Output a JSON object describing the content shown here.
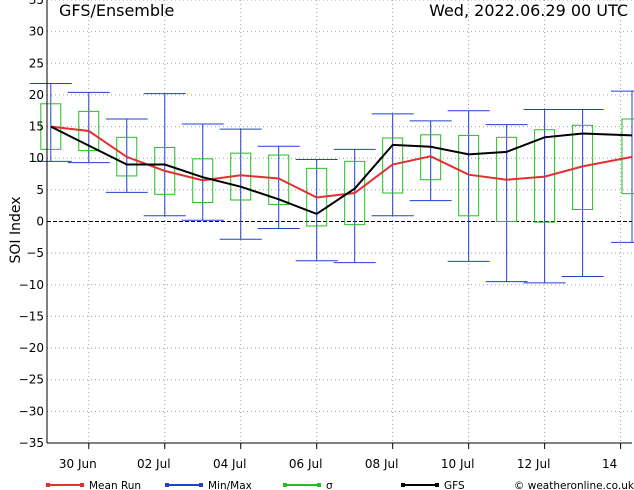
{
  "header": {
    "title": "GFS/Ensemble",
    "run_time": "Wed, 2022.06.29   00 UTC"
  },
  "footer": {
    "credit": "© weatheronline.co.uk"
  },
  "colors": {
    "mean": "#e03030",
    "minmax": "#2040d0",
    "sigma": "#20c020",
    "gfs": "#000000",
    "grid": "#a0a0a0"
  },
  "chart_data": {
    "type": "line",
    "ylabel": "SOI Index",
    "ylim": [
      -35,
      35
    ],
    "yticks": [
      35,
      30,
      25,
      20,
      15,
      10,
      5,
      0,
      -5,
      -10,
      -15,
      -20,
      -25,
      -30,
      -35
    ],
    "xlim": [
      -0.1,
      15.3
    ],
    "xtick_labels": [
      {
        "x": 1,
        "label": "30 Jun"
      },
      {
        "x": 3,
        "label": "02 Jul"
      },
      {
        "x": 5,
        "label": "04 Jul"
      },
      {
        "x": 7,
        "label": "06 Jul"
      },
      {
        "x": 9,
        "label": "08 Jul"
      },
      {
        "x": 11,
        "label": "10 Jul"
      },
      {
        "x": 13,
        "label": "12 Jul"
      },
      {
        "x": 15,
        "label": "14"
      }
    ],
    "x_unit": "days from 2022-06-29 00 UTC",
    "grid": true,
    "legend_position": "bottom",
    "legend": [
      {
        "key": "mean",
        "label": "Mean Run"
      },
      {
        "key": "minmax",
        "label": "Min/Max"
      },
      {
        "key": "sigma",
        "label": "σ"
      },
      {
        "key": "gfs",
        "label": "GFS"
      }
    ],
    "mean_run": [
      {
        "x": 0.0,
        "y": 15.0
      },
      {
        "x": 1.0,
        "y": 14.3
      },
      {
        "x": 2.0,
        "y": 10.2
      },
      {
        "x": 3.0,
        "y": 8.0
      },
      {
        "x": 4.0,
        "y": 6.5
      },
      {
        "x": 5.0,
        "y": 7.3
      },
      {
        "x": 6.0,
        "y": 6.8
      },
      {
        "x": 7.0,
        "y": 3.8
      },
      {
        "x": 8.0,
        "y": 4.5
      },
      {
        "x": 9.0,
        "y": 9.0
      },
      {
        "x": 10.0,
        "y": 10.3
      },
      {
        "x": 11.0,
        "y": 7.4
      },
      {
        "x": 12.0,
        "y": 6.6
      },
      {
        "x": 13.0,
        "y": 7.1
      },
      {
        "x": 14.0,
        "y": 8.7
      },
      {
        "x": 15.3,
        "y": 10.2
      }
    ],
    "gfs": [
      {
        "x": 0.0,
        "y": 15.0
      },
      {
        "x": 1.0,
        "y": 12.0
      },
      {
        "x": 2.0,
        "y": 9.0
      },
      {
        "x": 3.0,
        "y": 9.0
      },
      {
        "x": 4.0,
        "y": 7.0
      },
      {
        "x": 5.0,
        "y": 5.5
      },
      {
        "x": 6.0,
        "y": 3.5
      },
      {
        "x": 7.0,
        "y": 1.2
      },
      {
        "x": 8.0,
        "y": 5.2
      },
      {
        "x": 9.0,
        "y": 12.1
      },
      {
        "x": 10.0,
        "y": 11.8
      },
      {
        "x": 11.0,
        "y": 10.6
      },
      {
        "x": 12.0,
        "y": 11.0
      },
      {
        "x": 13.0,
        "y": 13.3
      },
      {
        "x": 14.0,
        "y": 13.9
      },
      {
        "x": 15.3,
        "y": 13.6
      }
    ],
    "boxes": [
      {
        "x": 0.0,
        "min": 9.5,
        "max": 21.8,
        "sigma_low": 11.4,
        "sigma_high": 18.6
      },
      {
        "x": 1.0,
        "min": 9.3,
        "max": 20.4,
        "sigma_low": 11.2,
        "sigma_high": 17.4
      },
      {
        "x": 2.0,
        "min": 4.6,
        "max": 16.2,
        "sigma_low": 7.2,
        "sigma_high": 13.3
      },
      {
        "x": 3.0,
        "min": 0.9,
        "max": 20.2,
        "sigma_low": 4.3,
        "sigma_high": 11.7
      },
      {
        "x": 4.0,
        "min": 0.2,
        "max": 15.4,
        "sigma_low": 3.0,
        "sigma_high": 9.9
      },
      {
        "x": 5.0,
        "min": -2.8,
        "max": 14.6,
        "sigma_low": 3.4,
        "sigma_high": 10.8
      },
      {
        "x": 6.0,
        "min": -1.1,
        "max": 11.9,
        "sigma_low": 2.7,
        "sigma_high": 10.5
      },
      {
        "x": 7.0,
        "min": -6.2,
        "max": 9.8,
        "sigma_low": -0.7,
        "sigma_high": 8.4
      },
      {
        "x": 8.0,
        "min": -6.5,
        "max": 11.4,
        "sigma_low": -0.5,
        "sigma_high": 9.5
      },
      {
        "x": 9.0,
        "min": 0.9,
        "max": 17.0,
        "sigma_low": 4.5,
        "sigma_high": 13.2
      },
      {
        "x": 10.0,
        "min": 3.3,
        "max": 15.9,
        "sigma_low": 6.6,
        "sigma_high": 13.7
      },
      {
        "x": 11.0,
        "min": -6.3,
        "max": 17.5,
        "sigma_low": 0.9,
        "sigma_high": 13.6
      },
      {
        "x": 12.0,
        "min": -9.5,
        "max": 15.3,
        "sigma_low": 0.0,
        "sigma_high": 13.3
      },
      {
        "x": 13.0,
        "min": -9.7,
        "max": 17.7,
        "sigma_low": -0.1,
        "sigma_high": 14.5
      },
      {
        "x": 14.0,
        "min": -8.7,
        "max": 17.7,
        "sigma_low": 1.9,
        "sigma_high": 15.2
      },
      {
        "x": 15.3,
        "min": -3.3,
        "max": 20.6,
        "sigma_low": 4.4,
        "sigma_high": 16.2
      }
    ]
  }
}
